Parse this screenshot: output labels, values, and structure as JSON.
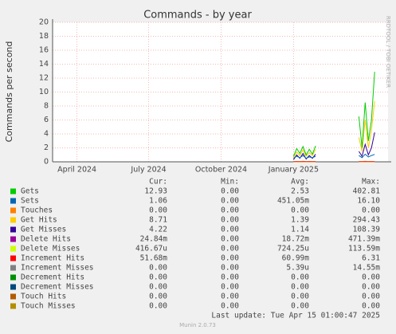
{
  "chart_data": {
    "type": "line",
    "title": "Commands - by year",
    "y_label": "Commands per second",
    "side_label": "RRDTOOL / TOBI OETIKER",
    "xlim": [
      "2024-03",
      "2025-05"
    ],
    "xticks": [
      {
        "value": "2024-04",
        "label": "April 2024"
      },
      {
        "value": "2024-07",
        "label": "July 2024"
      },
      {
        "value": "2024-10",
        "label": "October 2024"
      },
      {
        "value": "2025-01",
        "label": "January 2025"
      }
    ],
    "ylim": [
      0,
      20
    ],
    "yticks": [
      0,
      2,
      4,
      6,
      8,
      10,
      12,
      14,
      16,
      18,
      20
    ],
    "grid": true,
    "x": [
      "2025-01-01",
      "2025-01-05",
      "2025-01-09",
      "2025-01-13",
      "2025-01-17",
      "2025-01-21",
      "2025-01-25",
      "2025-01-29",
      "2025-02-15",
      "2025-03-25",
      "2025-03-29",
      "2025-04-02",
      "2025-04-06",
      "2025-04-10",
      "2025-04-14"
    ],
    "legend_columns": [
      "Cur:",
      "Min:",
      "Avg:",
      "Max:"
    ],
    "series": [
      {
        "name": "Gets",
        "color": "#00cc00",
        "values": [
          0.8,
          1.9,
          1.2,
          2.2,
          1.0,
          1.8,
          1.1,
          2.3,
          null,
          6.5,
          2.0,
          8.5,
          3.0,
          6.0,
          12.9
        ],
        "stats": [
          "12.93",
          "0.00",
          "2.53",
          "402.81"
        ]
      },
      {
        "name": "Sets",
        "color": "#0066b3",
        "values": [
          0.5,
          0.8,
          0.6,
          0.9,
          0.5,
          0.7,
          0.6,
          0.8,
          null,
          0.9,
          0.6,
          1.1,
          0.7,
          0.9,
          1.06
        ],
        "stats": [
          "1.06",
          "0.00",
          "451.05m",
          "16.10"
        ]
      },
      {
        "name": "Touches",
        "color": "#ff8000",
        "values": [
          0,
          0,
          0,
          0,
          0,
          0,
          0,
          0,
          null,
          0,
          0,
          0,
          0,
          0,
          0
        ],
        "stats": [
          "0.00",
          "0.00",
          "0.00",
          "0.00"
        ]
      },
      {
        "name": "Get Hits",
        "color": "#ffcc00",
        "values": [
          0.6,
          1.4,
          0.9,
          1.7,
          0.8,
          1.3,
          0.9,
          1.8,
          null,
          3.5,
          1.5,
          6.0,
          2.0,
          4.5,
          8.71
        ],
        "stats": [
          "8.71",
          "0.00",
          "1.39",
          "294.43"
        ]
      },
      {
        "name": "Get Misses",
        "color": "#330099",
        "values": [
          0.3,
          1.0,
          0.5,
          1.2,
          0.4,
          0.9,
          0.5,
          1.1,
          null,
          1.5,
          0.8,
          2.5,
          1.0,
          2.0,
          4.22
        ],
        "stats": [
          "4.22",
          "0.00",
          "1.14",
          "108.39"
        ]
      },
      {
        "name": "Delete Hits",
        "color": "#990099",
        "values": [
          0.02,
          0.03,
          0.02,
          0.03,
          0.02,
          0.03,
          0.02,
          0.03,
          null,
          0.03,
          0.02,
          0.04,
          0.02,
          0.03,
          0.02
        ],
        "stats": [
          "24.84m",
          "0.00",
          "18.72m",
          "471.39m"
        ]
      },
      {
        "name": "Delete Misses",
        "color": "#ccff00",
        "values": [
          0,
          0,
          0,
          0,
          0,
          0,
          0,
          0,
          null,
          0,
          0,
          0,
          0,
          0,
          0
        ],
        "stats": [
          "416.67u",
          "0.00",
          "724.25u",
          "113.59m"
        ]
      },
      {
        "name": "Increment Hits",
        "color": "#ff0000",
        "values": [
          0.05,
          0.06,
          0.05,
          0.07,
          0.05,
          0.06,
          0.05,
          0.06,
          null,
          0.06,
          0.05,
          0.07,
          0.05,
          0.06,
          0.05
        ],
        "stats": [
          "51.68m",
          "0.00",
          "60.99m",
          "6.31"
        ]
      },
      {
        "name": "Increment Misses",
        "color": "#808080",
        "values": [
          0,
          0,
          0,
          0,
          0,
          0,
          0,
          0,
          null,
          0,
          0,
          0,
          0,
          0,
          0
        ],
        "stats": [
          "0.00",
          "0.00",
          "5.39u",
          "14.55m"
        ]
      },
      {
        "name": "Decrement Hits",
        "color": "#008f00",
        "values": [
          0,
          0,
          0,
          0,
          0,
          0,
          0,
          0,
          null,
          0,
          0,
          0,
          0,
          0,
          0
        ],
        "stats": [
          "0.00",
          "0.00",
          "0.00",
          "0.00"
        ]
      },
      {
        "name": "Decrement Misses",
        "color": "#00487d",
        "values": [
          0,
          0,
          0,
          0,
          0,
          0,
          0,
          0,
          null,
          0,
          0,
          0,
          0,
          0,
          0
        ],
        "stats": [
          "0.00",
          "0.00",
          "0.00",
          "0.00"
        ]
      },
      {
        "name": "Touch Hits",
        "color": "#b35a00",
        "values": [
          0,
          0,
          0,
          0,
          0,
          0,
          0,
          0,
          null,
          0,
          0,
          0,
          0,
          0,
          0
        ],
        "stats": [
          "0.00",
          "0.00",
          "0.00",
          "0.00"
        ]
      },
      {
        "name": "Touch Misses",
        "color": "#b38f00",
        "values": [
          0,
          0,
          0,
          0,
          0,
          0,
          0,
          0,
          null,
          0,
          0,
          0,
          0,
          0,
          0
        ],
        "stats": [
          "0.00",
          "0.00",
          "0.00",
          "0.00"
        ]
      }
    ],
    "last_update": "Last update: Tue Apr 15 01:00:47 2025",
    "footer": "Munin 2.0.73"
  }
}
